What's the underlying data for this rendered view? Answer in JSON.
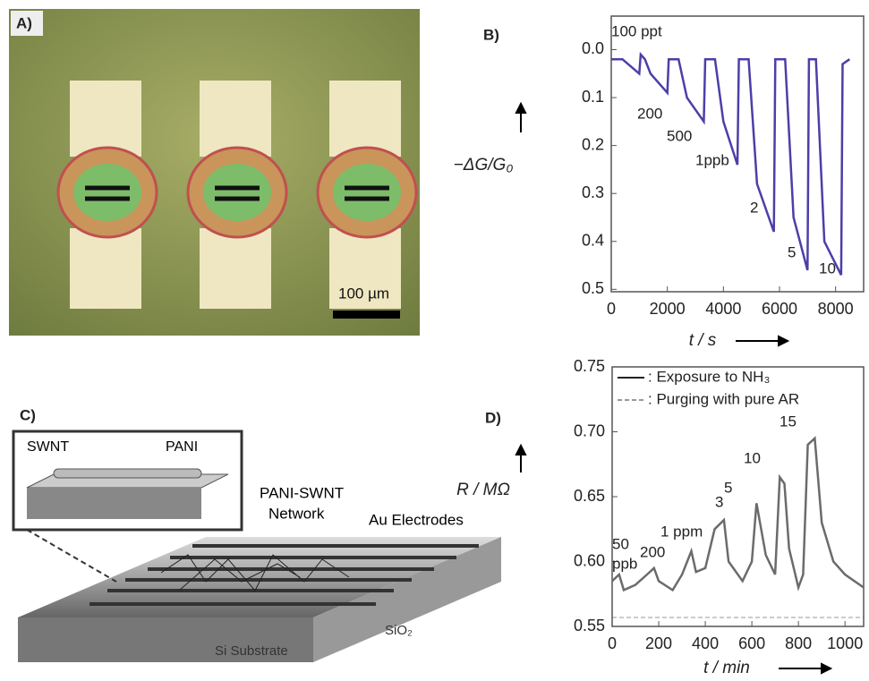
{
  "panels": {
    "A": {
      "label": "A)",
      "scale_bar": "100 µm"
    },
    "C": {
      "label": "C)",
      "inset_left": "SWNT",
      "inset_right": "PANI",
      "network": "PANI-SWNT",
      "network2": "Network",
      "electrodes": "Au Electrodes",
      "oxide": "SiO₂",
      "substrate": "Si Substrate"
    }
  },
  "chart_data": [
    {
      "type": "line",
      "panel_label": "B)",
      "y_label": "−ΔG/G₀",
      "x_label": "t / s",
      "y_inverted": true,
      "x": [
        0,
        400,
        1000,
        1050,
        1200,
        1400,
        2000,
        2050,
        2400,
        2700,
        3300,
        3350,
        3700,
        4000,
        4500,
        4550,
        4900,
        5200,
        5800,
        5850,
        6200,
        6500,
        7000,
        7050,
        7300,
        7600,
        8200,
        8250,
        8500
      ],
      "series": [
        {
          "name": null,
          "color": "#4b3fa8",
          "values": [
            0.02,
            0.02,
            0.05,
            0.01,
            0.02,
            0.05,
            0.09,
            0.02,
            0.02,
            0.1,
            0.15,
            0.02,
            0.02,
            0.15,
            0.24,
            0.02,
            0.02,
            0.28,
            0.38,
            0.02,
            0.02,
            0.35,
            0.46,
            0.02,
            0.02,
            0.4,
            0.47,
            0.03,
            0.02
          ]
        }
      ],
      "annotations": [
        "100 ppt",
        "200",
        "500",
        "1ppb",
        "2",
        "5",
        "10"
      ],
      "xlim": [
        0,
        9000
      ],
      "xticks": [
        0,
        2000,
        4000,
        6000,
        8000
      ],
      "ylim": [
        -0.07,
        0.505
      ],
      "yticks": [
        {
          "value": 0,
          "label": "0.0"
        },
        0.1,
        0.2,
        0.3,
        0.4,
        0.5
      ]
    },
    {
      "type": "line",
      "panel_label": "D)",
      "y_label": "R / MΩ",
      "x_label": "t / min",
      "legend": [
        ": Exposure to NH₃",
        ": Purging with pure AR"
      ],
      "x": [
        0,
        30,
        50,
        100,
        150,
        180,
        200,
        260,
        300,
        340,
        360,
        400,
        440,
        480,
        500,
        560,
        600,
        620,
        660,
        700,
        720,
        740,
        760,
        800,
        820,
        840,
        870,
        900,
        950,
        1000,
        1080
      ],
      "series": [
        {
          "name": null,
          "color": "#6b6b6b",
          "values": [
            0.585,
            0.59,
            0.578,
            0.582,
            0.59,
            0.595,
            0.585,
            0.578,
            0.59,
            0.608,
            0.592,
            0.595,
            0.625,
            0.632,
            0.6,
            0.585,
            0.6,
            0.645,
            0.605,
            0.59,
            0.665,
            0.66,
            0.61,
            0.58,
            0.59,
            0.69,
            0.695,
            0.63,
            0.6,
            0.59,
            0.58
          ]
        }
      ],
      "annotations": [
        "50",
        "ppb",
        "200",
        "1 ppm",
        "3",
        "5",
        "10",
        "15"
      ],
      "xlim": [
        0,
        1080
      ],
      "xticks": [
        0,
        200,
        400,
        600,
        800,
        1000
      ],
      "ylim": [
        0.55,
        0.75
      ],
      "yticks": [
        0.55,
        {
          "value": 0.6,
          "label": "0.60"
        },
        0.65,
        {
          "value": 0.7,
          "label": "0.70"
        },
        0.75
      ]
    }
  ]
}
